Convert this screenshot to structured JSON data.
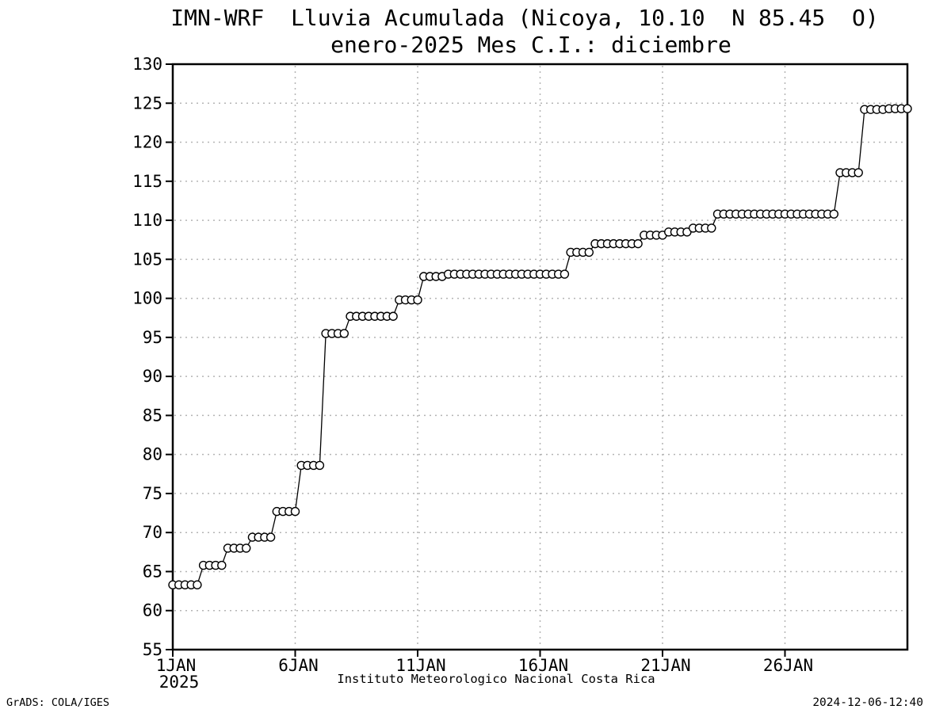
{
  "footer": {
    "grads_credit": "GrADS: COLA/IGES",
    "timestamp": "2024-12-06-12:40"
  },
  "colors": {
    "background": "#ffffff",
    "line": "#000000",
    "marker_fill": "#ffffff",
    "grid": "#b4b4b4",
    "text": "#000000"
  },
  "chart_data": {
    "type": "line",
    "title": "IMN-WRF  Lluvia Acumulada (Nicoya, 10.10  N 85.45  O)",
    "subtitle": "enero-2025 Mes C.I.: diciembre",
    "xlabel": "Instituto Meteorologico Nacional Costa Rica",
    "ylabel": "",
    "ylim": [
      55,
      130
    ],
    "ytick_step": 5,
    "ytick_labels": [
      "55",
      "60",
      "65",
      "70",
      "75",
      "80",
      "85",
      "90",
      "95",
      "100",
      "105",
      "110",
      "115",
      "120",
      "125",
      "130"
    ],
    "xtick_labels": [
      "1JAN",
      "6JAN",
      "11JAN",
      "16JAN",
      "21JAN",
      "26JAN"
    ],
    "xtick_days": [
      0,
      5,
      10,
      15,
      20,
      25
    ],
    "x_year_label": "2025",
    "x_total_days": 30,
    "x_start": "1JAN2025 00Z",
    "x_end": "31JAN2025 00Z",
    "point_interval_hours": 6,
    "grid": "dotted",
    "legend": "none",
    "marker": "open-circle",
    "series": [
      {
        "name": "Lluvia acumulada (mm)",
        "values": [
          63.3,
          63.3,
          63.3,
          63.3,
          63.3,
          65.8,
          65.8,
          65.8,
          65.8,
          68.0,
          68.0,
          68.0,
          68.0,
          69.4,
          69.4,
          69.4,
          69.4,
          72.7,
          72.7,
          72.7,
          72.7,
          78.6,
          78.6,
          78.6,
          78.6,
          95.5,
          95.5,
          95.5,
          95.5,
          97.7,
          97.7,
          97.7,
          97.7,
          97.7,
          97.7,
          97.7,
          97.7,
          99.8,
          99.8,
          99.8,
          99.8,
          102.8,
          102.8,
          102.8,
          102.8,
          103.1,
          103.1,
          103.1,
          103.1,
          103.1,
          103.1,
          103.1,
          103.1,
          103.1,
          103.1,
          103.1,
          103.1,
          103.1,
          103.1,
          103.1,
          103.1,
          103.1,
          103.1,
          103.1,
          103.1,
          105.9,
          105.9,
          105.9,
          105.9,
          107.0,
          107.0,
          107.0,
          107.0,
          107.0,
          107.0,
          107.0,
          107.0,
          108.1,
          108.1,
          108.1,
          108.1,
          108.5,
          108.5,
          108.5,
          108.5,
          109.0,
          109.0,
          109.0,
          109.0,
          110.8,
          110.8,
          110.8,
          110.8,
          110.8,
          110.8,
          110.8,
          110.8,
          110.8,
          110.8,
          110.8,
          110.8,
          110.8,
          110.8,
          110.8,
          110.8,
          110.8,
          110.8,
          110.8,
          110.8,
          116.1,
          116.1,
          116.1,
          116.1,
          124.2,
          124.2,
          124.2,
          124.2,
          124.3,
          124.3,
          124.3,
          124.3
        ]
      }
    ]
  }
}
